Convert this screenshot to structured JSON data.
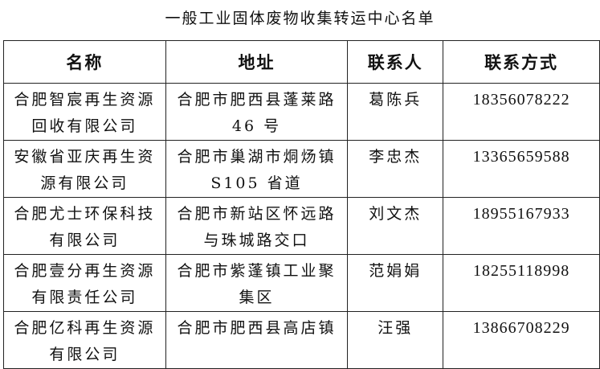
{
  "title": "一般工业固体废物收集转运中心名单",
  "headers": [
    "名称",
    "地址",
    "联系人",
    "联系方式"
  ],
  "rows": [
    {
      "name": "合肥智宸再生资源回收有限公司",
      "address": "合肥市肥西县蓬莱路 46 号",
      "contact": "葛陈兵",
      "phone": "18356078222"
    },
    {
      "name": "安徽省亚庆再生资源有限公司",
      "address": "合肥市巢湖市烔炀镇 S105 省道",
      "contact": "李忠杰",
      "phone": "13365659588"
    },
    {
      "name": "合肥尤士环保科技有限公司",
      "address": "合肥市新站区怀远路与珠城路交口",
      "contact": "刘文杰",
      "phone": "18955167933"
    },
    {
      "name": "合肥壹分再生资源有限责任公司",
      "address": "合肥市紫蓬镇工业聚集区",
      "contact": "范娟娟",
      "phone": "18255118998"
    },
    {
      "name": "合肥亿科再生资源有限公司",
      "address": "合肥市肥西县高店镇",
      "contact": "汪强",
      "phone": "13866708229"
    }
  ]
}
